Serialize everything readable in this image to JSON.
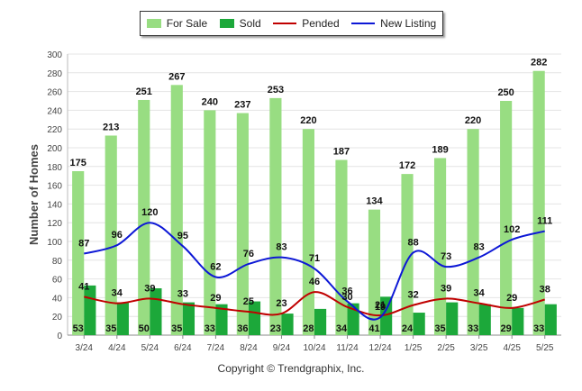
{
  "copyright": "Copyright © Trendgraphix, Inc.",
  "colors": {
    "for_sale": "#98dd82",
    "sold": "#1ca83a",
    "pended": "#c00000",
    "new_listing": "#0d18d6"
  },
  "chart_data": {
    "type": "bar",
    "ylabel": "Number of Homes",
    "xlabel": "",
    "ylim": [
      0,
      300
    ],
    "yticks": [
      0,
      20,
      40,
      60,
      80,
      100,
      120,
      140,
      160,
      180,
      200,
      220,
      240,
      260,
      280,
      300
    ],
    "grid": true,
    "legend": "top-center",
    "categories": [
      "3/24",
      "4/24",
      "5/24",
      "6/24",
      "7/24",
      "8/24",
      "9/24",
      "10/24",
      "11/24",
      "12/24",
      "1/25",
      "2/25",
      "3/25",
      "4/25",
      "5/25"
    ],
    "series": [
      {
        "name": "For Sale",
        "type": "bar",
        "values": [
          175,
          213,
          251,
          267,
          240,
          237,
          253,
          220,
          187,
          134,
          172,
          189,
          220,
          250,
          282
        ]
      },
      {
        "name": "Sold",
        "type": "bar",
        "values": [
          53,
          35,
          50,
          35,
          33,
          36,
          23,
          28,
          34,
          41,
          24,
          35,
          33,
          29,
          33
        ]
      },
      {
        "name": "Pended",
        "type": "line",
        "values": [
          41,
          34,
          39,
          33,
          29,
          25,
          23,
          46,
          30,
          21,
          32,
          39,
          34,
          29,
          38
        ]
      },
      {
        "name": "New Listing",
        "type": "line",
        "values": [
          87,
          96,
          120,
          95,
          62,
          76,
          83,
          71,
          36,
          19,
          88,
          73,
          83,
          102,
          111
        ]
      }
    ]
  }
}
